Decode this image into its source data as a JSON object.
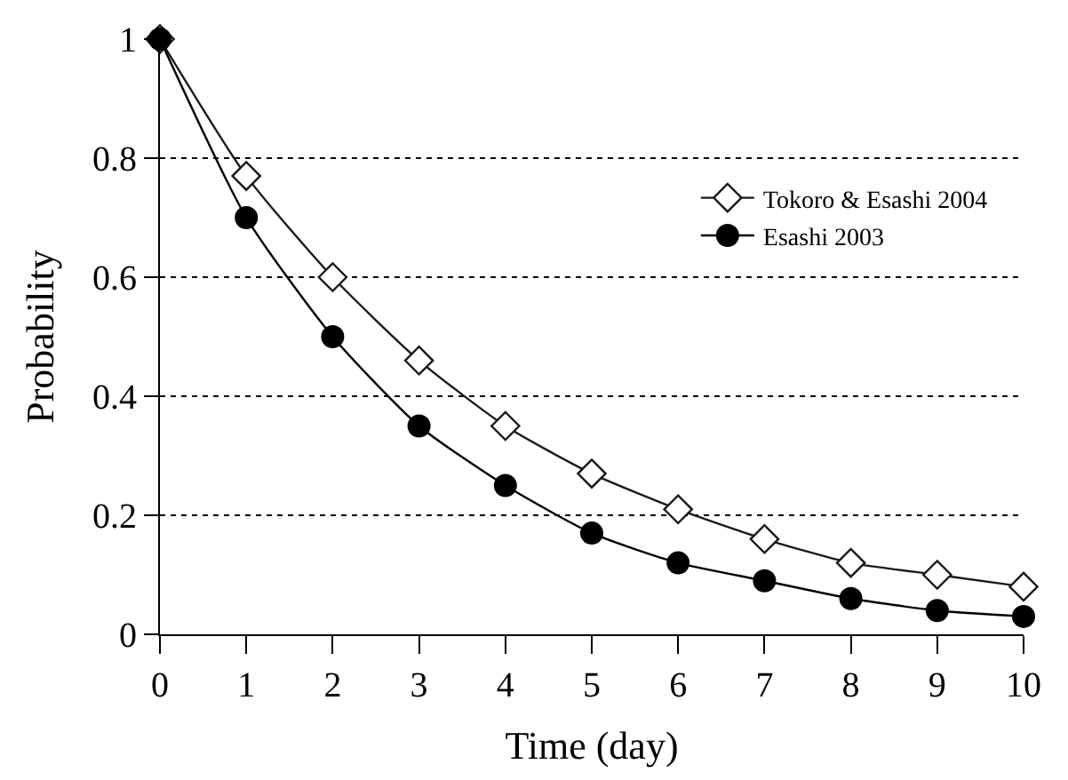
{
  "chart_data": {
    "type": "line",
    "xlabel": "Time (day)",
    "ylabel": "Probability",
    "x": [
      0,
      1,
      2,
      3,
      4,
      5,
      6,
      7,
      8,
      9,
      10
    ],
    "series": [
      {
        "name": "Tokoro & Esashi 2004",
        "color": "#1a1a1a",
        "marker": "diamond",
        "values": [
          1,
          0.77,
          0.6,
          0.46,
          0.35,
          0.27,
          0.21,
          0.16,
          0.12,
          0.1,
          0.08
        ]
      },
      {
        "name": "Esashi 2003",
        "color": "#000000",
        "marker": "circle",
        "values": [
          1,
          0.7,
          0.5,
          0.35,
          0.25,
          0.17,
          0.12,
          0.09,
          0.06,
          0.04,
          0.03
        ]
      }
    ],
    "xlim": [
      0,
      10
    ],
    "xticks": [
      0,
      1,
      2,
      3,
      4,
      5,
      6,
      7,
      8,
      9,
      10
    ],
    "ylim": [
      0,
      1
    ],
    "yticks": [
      0,
      0.2,
      0.4,
      0.6,
      0.8,
      1
    ],
    "grid": "y",
    "legend": "top right",
    "line_style": "solid"
  }
}
